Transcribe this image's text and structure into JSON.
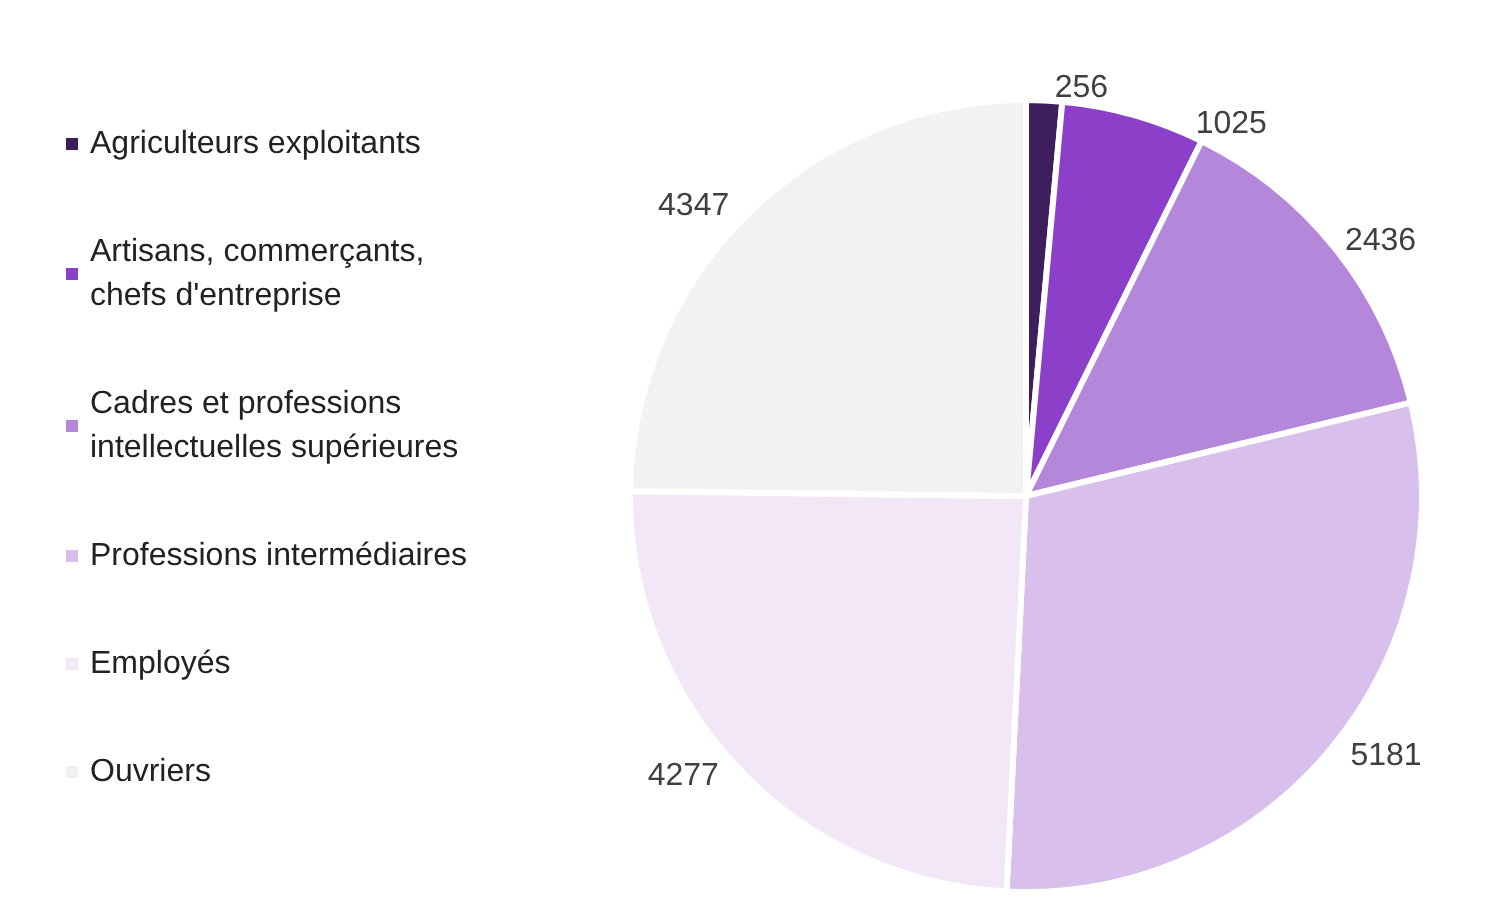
{
  "chart_data": {
    "type": "pie",
    "categories": [
      "Agriculteurs exploitants",
      "Artisans, commerçants,\nchefs d'entreprise",
      "Cadres et professions\nintellectuelles supérieures",
      "Professions intermédiaires",
      "Employés",
      "Ouvriers"
    ],
    "values": [
      256,
      1025,
      2436,
      5181,
      4277,
      4347
    ],
    "colors": [
      "#3d1f5e",
      "#8c3fc8",
      "#b487db",
      "#d9bfeb",
      "#f1e7f6",
      "#f2f2f2"
    ],
    "data_labels": true,
    "legend": "left"
  }
}
